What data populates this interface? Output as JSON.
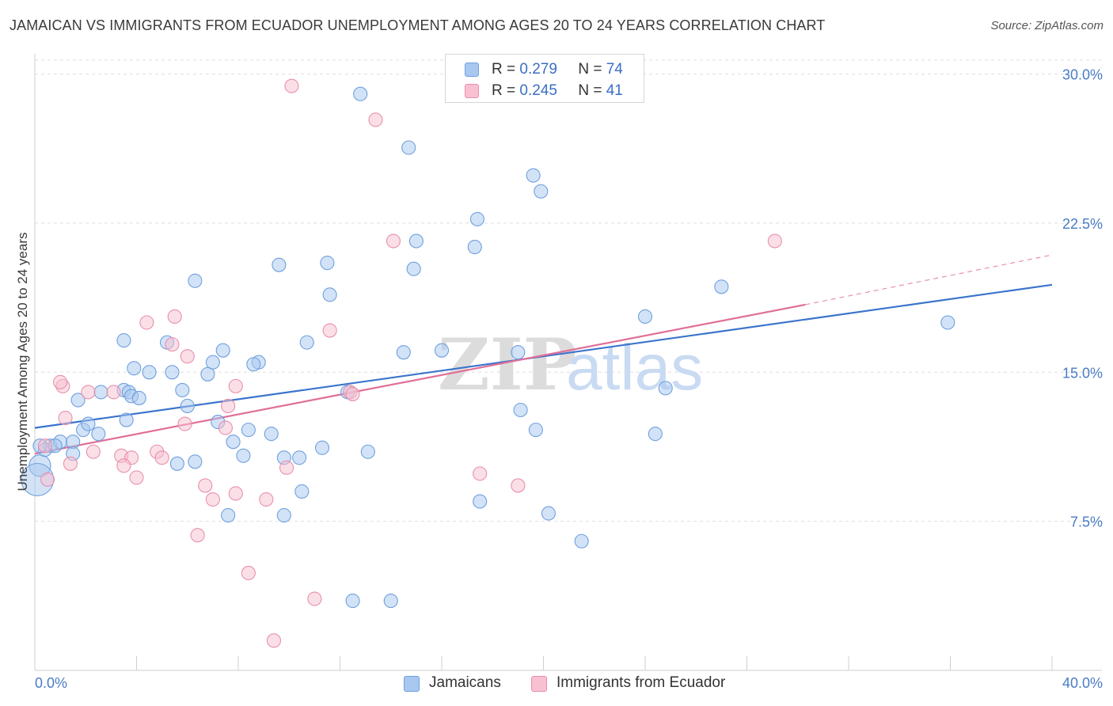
{
  "title": "JAMAICAN VS IMMIGRANTS FROM ECUADOR UNEMPLOYMENT AMONG AGES 20 TO 24 YEARS CORRELATION CHART",
  "source": "Source: ZipAtlas.com",
  "watermark": {
    "zip": "ZIP",
    "atlas": "atlas"
  },
  "legend": {
    "rows": [
      {
        "r_label": "R =",
        "r_value": "0.279",
        "n_label": "N =",
        "n_value": "74",
        "color": "#a8c8f0",
        "border": "#6fa0de"
      },
      {
        "r_label": "R =",
        "r_value": "0.245",
        "n_label": "N =",
        "n_value": "41",
        "color": "#f8c0d0",
        "border": "#e890ac"
      }
    ]
  },
  "bottom_legend": {
    "jamaicans": "Jamaicans",
    "ecuador": "Immigrants from Ecuador"
  },
  "chart_data": {
    "type": "scatter",
    "xlabel": "",
    "ylabel": "Unemployment Among Ages 20 to 24 years",
    "xlim": [
      0,
      40
    ],
    "ylim": [
      0,
      30.7
    ],
    "x_tick_labels": [
      "0.0%",
      "40.0%"
    ],
    "y_ticks": [
      7.5,
      15.0,
      22.5,
      30.0
    ],
    "y_tick_labels": [
      "7.5%",
      "15.0%",
      "22.5%",
      "30.0%"
    ],
    "grid": true,
    "legend_position": "top-center",
    "series": [
      {
        "name": "Jamaicans",
        "color": "#6fa0de",
        "fill": "#a8c8f0",
        "trend": {
          "x": [
            0,
            40
          ],
          "y": [
            12.2,
            19.4
          ]
        },
        "points": [
          [
            0.2,
            10.3,
            1.6
          ],
          [
            0.1,
            9.6,
            2.4
          ],
          [
            0.6,
            11.3,
            1
          ],
          [
            1.0,
            11.5,
            1
          ],
          [
            0.4,
            11.1,
            1
          ],
          [
            0.8,
            11.3,
            1
          ],
          [
            1.5,
            11.5,
            1
          ],
          [
            1.5,
            10.9,
            1
          ],
          [
            1.7,
            13.6,
            1
          ],
          [
            1.9,
            12.1,
            1
          ],
          [
            2.1,
            12.4,
            1
          ],
          [
            2.6,
            14.0,
            1
          ],
          [
            2.5,
            11.9,
            1
          ],
          [
            3.5,
            14.1,
            1
          ],
          [
            3.7,
            14.0,
            1
          ],
          [
            3.8,
            13.8,
            1
          ],
          [
            3.6,
            12.6,
            1
          ],
          [
            4.1,
            13.7,
            1
          ],
          [
            3.9,
            15.2,
            1
          ],
          [
            3.5,
            16.6,
            1
          ],
          [
            4.5,
            15.0,
            1
          ],
          [
            5.2,
            16.5,
            1
          ],
          [
            5.4,
            15.0,
            1
          ],
          [
            5.8,
            14.1,
            1
          ],
          [
            6.0,
            13.3,
            1
          ],
          [
            5.6,
            10.4,
            1
          ],
          [
            6.3,
            10.5,
            1
          ],
          [
            6.8,
            14.9,
            1
          ],
          [
            7.4,
            16.1,
            1
          ],
          [
            7.0,
            15.5,
            1
          ],
          [
            7.2,
            12.5,
            1
          ],
          [
            7.8,
            11.5,
            1
          ],
          [
            8.2,
            10.8,
            1
          ],
          [
            8.4,
            12.1,
            1
          ],
          [
            8.8,
            15.5,
            1
          ],
          [
            8.6,
            15.4,
            1
          ],
          [
            9.3,
            11.9,
            1
          ],
          [
            9.6,
            20.4,
            1
          ],
          [
            9.8,
            7.8,
            1
          ],
          [
            9.8,
            10.7,
            1
          ],
          [
            10.4,
            10.7,
            1
          ],
          [
            10.5,
            9.0,
            1
          ],
          [
            7.6,
            7.8,
            1
          ],
          [
            6.3,
            19.6,
            1
          ],
          [
            10.7,
            16.5,
            1
          ],
          [
            11.3,
            11.2,
            1
          ],
          [
            11.5,
            20.5,
            1
          ],
          [
            11.6,
            18.9,
            1
          ],
          [
            12.3,
            14.0,
            1
          ],
          [
            12.5,
            3.5,
            1
          ],
          [
            13.1,
            11.0,
            1
          ],
          [
            14.0,
            3.5,
            1
          ],
          [
            12.8,
            29.0,
            1
          ],
          [
            14.5,
            16.0,
            1
          ],
          [
            14.7,
            26.3,
            1
          ],
          [
            14.9,
            20.2,
            1
          ],
          [
            15.0,
            21.6,
            1
          ],
          [
            16.0,
            16.1,
            1
          ],
          [
            17.5,
            8.5,
            1
          ],
          [
            17.4,
            22.7,
            1
          ],
          [
            17.3,
            21.3,
            1
          ],
          [
            19.0,
            16.0,
            1
          ],
          [
            19.1,
            13.1,
            1
          ],
          [
            19.6,
            24.9,
            1
          ],
          [
            19.7,
            12.1,
            1
          ],
          [
            19.9,
            24.1,
            1
          ],
          [
            20.2,
            7.9,
            1
          ],
          [
            21.5,
            6.5,
            1
          ],
          [
            24.0,
            17.8,
            1
          ],
          [
            24.4,
            11.9,
            1
          ],
          [
            24.8,
            14.2,
            1
          ],
          [
            27.0,
            19.3,
            1
          ],
          [
            35.9,
            17.5,
            1
          ],
          [
            0.2,
            11.3,
            1
          ]
        ]
      },
      {
        "name": "Immigrants from Ecuador",
        "color": "#e890ac",
        "fill": "#f8c0d0",
        "trend": {
          "x": [
            0,
            30.3
          ],
          "y": [
            10.9,
            18.4
          ]
        },
        "trend_extension": {
          "x": [
            30.3,
            40
          ],
          "y": [
            18.4,
            20.9
          ]
        },
        "points": [
          [
            0.4,
            11.3,
            1
          ],
          [
            1.1,
            14.3,
            1
          ],
          [
            1.4,
            10.4,
            1
          ],
          [
            1.0,
            14.5,
            1
          ],
          [
            1.2,
            12.7,
            1
          ],
          [
            2.3,
            11.0,
            1
          ],
          [
            2.1,
            14.0,
            1
          ],
          [
            3.1,
            14.0,
            1
          ],
          [
            3.4,
            10.8,
            1
          ],
          [
            3.8,
            10.7,
            1
          ],
          [
            3.5,
            10.3,
            1
          ],
          [
            4.0,
            9.7,
            1
          ],
          [
            4.4,
            17.5,
            1
          ],
          [
            4.8,
            11.0,
            1
          ],
          [
            5.0,
            10.7,
            1
          ],
          [
            5.4,
            16.4,
            1
          ],
          [
            5.5,
            17.8,
            1
          ],
          [
            5.9,
            12.4,
            1
          ],
          [
            6.0,
            15.8,
            1
          ],
          [
            6.4,
            6.8,
            1
          ],
          [
            6.7,
            9.3,
            1
          ],
          [
            7.0,
            8.6,
            1
          ],
          [
            7.5,
            12.2,
            1
          ],
          [
            7.6,
            13.3,
            1
          ],
          [
            7.9,
            14.3,
            1
          ],
          [
            7.9,
            8.9,
            1
          ],
          [
            8.4,
            4.9,
            1
          ],
          [
            9.1,
            8.6,
            1
          ],
          [
            9.4,
            1.5,
            1
          ],
          [
            9.9,
            10.2,
            1
          ],
          [
            10.1,
            29.4,
            1
          ],
          [
            11.0,
            3.6,
            1
          ],
          [
            11.6,
            17.1,
            1
          ],
          [
            12.4,
            14.0,
            1
          ],
          [
            12.5,
            13.9,
            1
          ],
          [
            13.4,
            27.7,
            1
          ],
          [
            14.1,
            21.6,
            1
          ],
          [
            17.5,
            9.9,
            1
          ],
          [
            19.0,
            9.3,
            1
          ],
          [
            29.1,
            21.6,
            1
          ],
          [
            0.5,
            9.6,
            1
          ]
        ]
      }
    ]
  }
}
